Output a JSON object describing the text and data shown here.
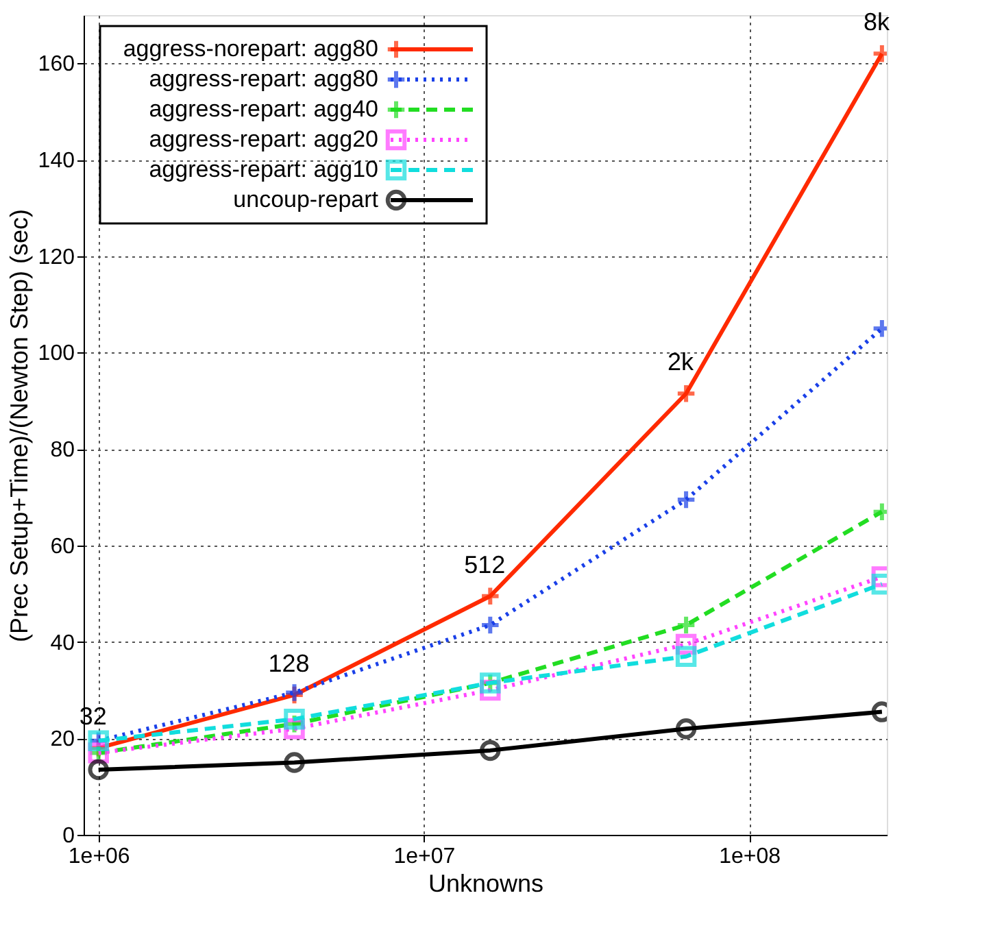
{
  "chart_data": {
    "type": "line",
    "xlabel": "Unknowns",
    "ylabel": "(Prec Setup+Time)/(Newton Step) (sec)",
    "x": [
      1000000,
      4000000,
      16000000,
      64000000,
      256000000
    ],
    "log": "x",
    "xlim": [
      900000,
      265000000
    ],
    "ylim": [
      0,
      170
    ],
    "xticks": [
      {
        "value": 1000000,
        "label": "1e+06"
      },
      {
        "value": 10000000,
        "label": "1e+07"
      },
      {
        "value": 100000000,
        "label": "1e+08"
      }
    ],
    "yticks": [
      0,
      20,
      40,
      60,
      80,
      100,
      120,
      140,
      160
    ],
    "grid": true,
    "legend": "top left",
    "series": [
      {
        "name": "aggress-norepart: agg80",
        "color": "#ff2a00",
        "marker": "cross",
        "line_style": "solid",
        "values": [
          18,
          29,
          49.5,
          91.5,
          162
        ]
      },
      {
        "name": "aggress-repart: agg80",
        "color": "#1a40e8",
        "marker": "cross",
        "line_style": "dotted",
        "values": [
          19.5,
          29.5,
          43.5,
          69.5,
          105
        ]
      },
      {
        "name": "aggress-repart: agg40",
        "color": "#22dd22",
        "marker": "cross",
        "line_style": "dashed",
        "values": [
          17,
          23,
          31.5,
          43.5,
          67
        ]
      },
      {
        "name": "aggress-repart: agg20",
        "color": "#ff44ff",
        "marker": "square",
        "line_style": "dotted",
        "values": [
          17,
          22,
          30,
          39.5,
          53.5
        ]
      },
      {
        "name": "aggress-repart: agg10",
        "color": "#11dddd",
        "marker": "square",
        "line_style": "dashed",
        "values": [
          19.5,
          24,
          31.5,
          37,
          52
        ]
      },
      {
        "name": "uncoup-repart",
        "color": "#000000",
        "marker": "circle",
        "line_style": "solid",
        "values": [
          13.5,
          15,
          17.5,
          22,
          25.5
        ]
      }
    ],
    "annotations": [
      {
        "text": "32",
        "x": 1000000,
        "y": 18
      },
      {
        "text": "128",
        "x": 4000000,
        "y": 29
      },
      {
        "text": "512",
        "x": 16000000,
        "y": 49.5
      },
      {
        "text": "2k",
        "x": 64000000,
        "y": 91.5
      },
      {
        "text": "8k",
        "x": 256000000,
        "y": 162
      }
    ]
  }
}
